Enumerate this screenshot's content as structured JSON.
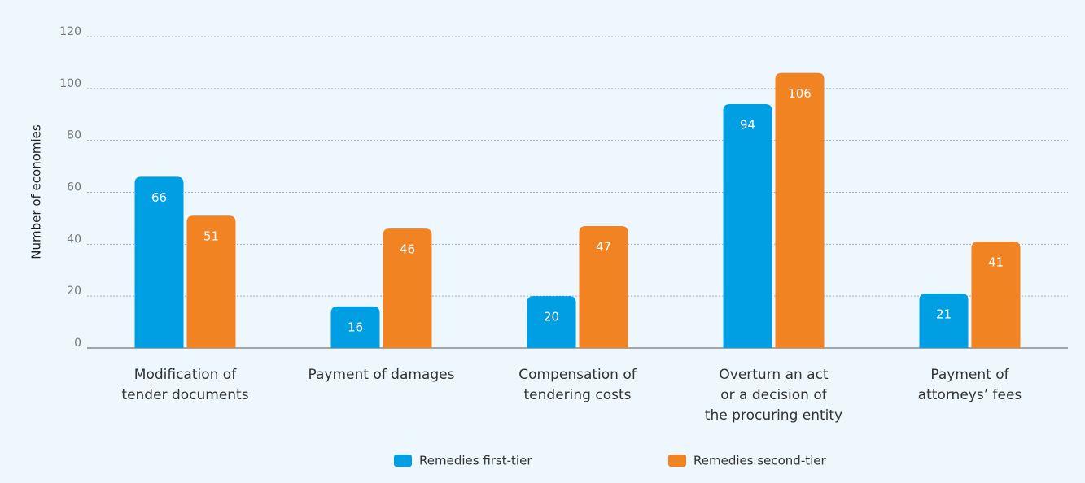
{
  "chart_data": {
    "type": "bar",
    "y_label": "Number of economies",
    "categories": [
      "Modification of\ntender documents",
      "Payment of damages",
      "Compensation of\ntendering costs",
      "Overturn an act\nor a decision of\nthe procuring entity",
      "Payment of\nattorneys’ fees"
    ],
    "series": [
      {
        "name": "Remedies first-tier",
        "color": "#009ee2",
        "values": [
          66,
          16,
          20,
          94,
          21
        ]
      },
      {
        "name": "Remedies second-tier",
        "color": "#f28322",
        "values": [
          51,
          46,
          47,
          106,
          41
        ]
      }
    ],
    "ylim": [
      0,
      120
    ],
    "yticks": [
      0,
      20,
      40,
      60,
      80,
      100,
      120
    ],
    "grid": true,
    "legend": "bottom"
  }
}
